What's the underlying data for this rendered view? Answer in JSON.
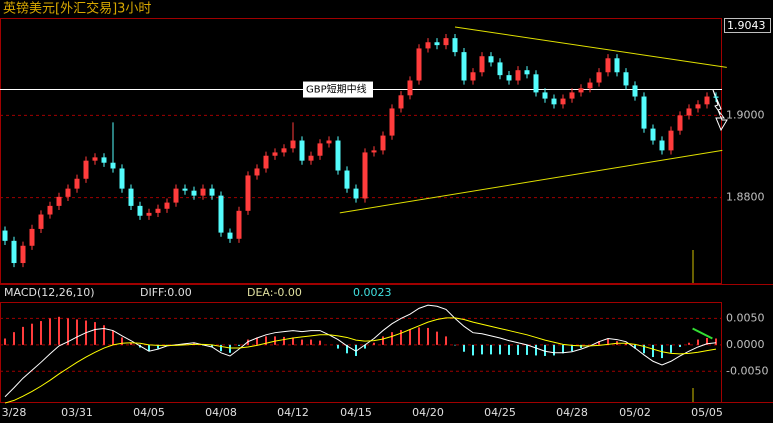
{
  "chart_data": [
    {
      "type": "candlestick",
      "title": "英镑美元[外汇交易]3小时",
      "categories": [
        null,
        "3/28",
        null,
        null,
        null,
        null,
        null,
        null,
        "03/31",
        null,
        null,
        null,
        null,
        null,
        null,
        null,
        "04/05",
        null,
        null,
        null,
        null,
        null,
        null,
        null,
        "04/08",
        null,
        null,
        null,
        null,
        null,
        null,
        null,
        "04/12",
        null,
        null,
        null,
        null,
        null,
        null,
        "04/15",
        null,
        null,
        null,
        null,
        null,
        null,
        null,
        "04/20",
        null,
        null,
        null,
        null,
        null,
        null,
        null,
        "04/25",
        null,
        null,
        null,
        null,
        null,
        null,
        null,
        "04/28",
        null,
        null,
        null,
        null,
        null,
        null,
        "05/02",
        null,
        null,
        null,
        null,
        null,
        null,
        null,
        "05/05",
        null
      ],
      "open": [
        1.872,
        1.8695,
        1.8641,
        1.8683,
        1.8724,
        1.8759,
        1.878,
        1.8802,
        1.8822,
        1.8846,
        1.889,
        1.8898,
        1.8885,
        1.8871,
        1.8822,
        1.878,
        1.8756,
        1.8763,
        1.8773,
        1.8788,
        1.8822,
        1.8817,
        1.8805,
        1.8822,
        1.8805,
        1.8715,
        1.87,
        1.8768,
        1.8854,
        1.8871,
        1.8902,
        1.891,
        1.892,
        1.8939,
        1.889,
        1.8902,
        1.8932,
        1.8939,
        1.8866,
        1.8822,
        1.8798,
        1.891,
        1.8915,
        1.8951,
        1.9017,
        1.9049,
        1.9085,
        1.9163,
        1.9178,
        1.9171,
        1.9188,
        1.9154,
        1.9085,
        1.9105,
        1.9144,
        1.9129,
        1.9098,
        1.9085,
        1.911,
        1.91,
        1.9056,
        1.9041,
        1.9027,
        1.9041,
        1.9056,
        1.9066,
        1.908,
        1.9105,
        1.9139,
        1.9105,
        1.9073,
        1.9046,
        1.8968,
        1.8939,
        1.8915,
        1.8963,
        1.9,
        1.9017,
        1.9027,
        1.9046
      ],
      "high": [
        1.873,
        1.8705,
        1.8693,
        1.8734,
        1.8769,
        1.879,
        1.8812,
        1.8832,
        1.8856,
        1.89,
        1.8908,
        1.8908,
        1.8983,
        1.8881,
        1.8832,
        1.879,
        1.8773,
        1.8783,
        1.8798,
        1.8832,
        1.8832,
        1.8827,
        1.8832,
        1.8832,
        1.8815,
        1.8725,
        1.8778,
        1.8864,
        1.8881,
        1.8912,
        1.892,
        1.893,
        1.8983,
        1.8949,
        1.8912,
        1.8942,
        1.8949,
        1.8949,
        1.8876,
        1.8832,
        1.892,
        1.8925,
        1.8961,
        1.9027,
        1.9059,
        1.9095,
        1.9173,
        1.9188,
        1.9188,
        1.9198,
        1.9198,
        1.9164,
        1.9115,
        1.9154,
        1.9154,
        1.9139,
        1.9108,
        1.912,
        1.912,
        1.911,
        1.9066,
        1.9051,
        1.9051,
        1.9066,
        1.9076,
        1.909,
        1.9115,
        1.9149,
        1.9149,
        1.9115,
        1.9083,
        1.9056,
        1.8978,
        1.8949,
        1.8973,
        1.901,
        1.9027,
        1.9037,
        1.9056,
        1.9056
      ],
      "low": [
        1.8685,
        1.8631,
        1.8631,
        1.8673,
        1.8714,
        1.8749,
        1.877,
        1.8792,
        1.8812,
        1.8836,
        1.888,
        1.8875,
        1.8861,
        1.8812,
        1.877,
        1.8746,
        1.8746,
        1.8753,
        1.8763,
        1.8778,
        1.8807,
        1.8795,
        1.8795,
        1.8795,
        1.8705,
        1.869,
        1.869,
        1.8758,
        1.8844,
        1.8861,
        1.8892,
        1.89,
        1.891,
        1.888,
        1.888,
        1.8892,
        1.8922,
        1.8856,
        1.8812,
        1.8788,
        1.8788,
        1.89,
        1.8905,
        1.8941,
        1.9007,
        1.9039,
        1.9075,
        1.9153,
        1.9161,
        1.9161,
        1.9144,
        1.9075,
        1.9075,
        1.9095,
        1.9119,
        1.9088,
        1.9075,
        1.9075,
        1.909,
        1.9046,
        1.9031,
        1.9017,
        1.9017,
        1.9031,
        1.9046,
        1.9056,
        1.907,
        1.9095,
        1.9095,
        1.9063,
        1.9036,
        1.8958,
        1.8929,
        1.8905,
        1.8905,
        1.8953,
        1.899,
        1.9007,
        1.9017,
        1.9033
      ],
      "close": [
        1.8695,
        1.8641,
        1.8683,
        1.8724,
        1.8759,
        1.878,
        1.8802,
        1.8822,
        1.8846,
        1.889,
        1.8898,
        1.8885,
        1.8871,
        1.8822,
        1.878,
        1.8756,
        1.8763,
        1.8773,
        1.8788,
        1.8822,
        1.8817,
        1.8805,
        1.8822,
        1.8805,
        1.8715,
        1.87,
        1.8768,
        1.8854,
        1.8871,
        1.8902,
        1.891,
        1.892,
        1.8939,
        1.889,
        1.8902,
        1.8932,
        1.8939,
        1.8866,
        1.8822,
        1.8798,
        1.891,
        1.8915,
        1.8951,
        1.9017,
        1.9049,
        1.9085,
        1.9163,
        1.9178,
        1.9171,
        1.9188,
        1.9154,
        1.9085,
        1.9105,
        1.9144,
        1.9129,
        1.9098,
        1.9085,
        1.911,
        1.91,
        1.9056,
        1.9041,
        1.9027,
        1.9041,
        1.9056,
        1.9066,
        1.908,
        1.9105,
        1.9139,
        1.9105,
        1.9073,
        1.9046,
        1.8968,
        1.8939,
        1.8915,
        1.8963,
        1.9,
        1.9017,
        1.9027,
        1.9046,
        1.9043
      ],
      "up_color": "#ff3c3c",
      "down_color": "#54fcfc",
      "ylim": [
        1.859,
        1.9237
      ],
      "yticks": [
        {
          "value": 1.88,
          "label": "1.8800"
        },
        {
          "value": 1.9,
          "label": "1.9000"
        }
      ],
      "grid": true,
      "reference_line": {
        "value": 1.9063,
        "label": "GBP短期中线",
        "color": "#ffffff"
      },
      "trendlines": [
        {
          "color": "#e0e000",
          "points": [
            [
              50,
              1.9215
            ],
            [
              80.2,
              1.9117
            ]
          ]
        },
        {
          "color": "#e0e000",
          "points": [
            [
              37.2,
              1.8763
            ],
            [
              79.7,
              1.8915
            ]
          ]
        }
      ]
    },
    {
      "type": "macd",
      "label": "MACD(12,26,10)",
      "diff_label": "DIFF:0.00",
      "dea_label": "DEA:-0.00",
      "macd_value": 0.0023,
      "diff": [
        -0.0098,
        -0.0081,
        -0.0063,
        -0.0048,
        -0.0033,
        -0.0017,
        -0.0002,
        0.0006,
        0.0015,
        0.0023,
        0.0029,
        0.0031,
        0.0027,
        0.0017,
        0.0008,
        -0.0002,
        -0.0012,
        -0.0008,
        -0.0002,
        0.0,
        0.0002,
        0.0004,
        0.0,
        -0.0004,
        -0.0015,
        -0.0021,
        -0.0008,
        0.0006,
        0.0013,
        0.0019,
        0.0023,
        0.0025,
        0.0027,
        0.0025,
        0.0027,
        0.0027,
        0.0019,
        0.001,
        -0.0002,
        -0.0012,
        0.0,
        0.0012,
        0.0027,
        0.004,
        0.005,
        0.0058,
        0.0069,
        0.0075,
        0.0073,
        0.0067,
        0.005,
        0.0035,
        0.0023,
        0.0021,
        0.0017,
        0.0013,
        0.0008,
        0.0004,
        0.0,
        -0.0006,
        -0.0012,
        -0.0015,
        -0.0015,
        -0.0013,
        -0.0008,
        -0.0002,
        0.0006,
        0.0012,
        0.001,
        0.0006,
        -0.0006,
        -0.0019,
        -0.0031,
        -0.0038,
        -0.0031,
        -0.0021,
        -0.0012,
        -0.0004,
        0.0002,
        0.0004
      ],
      "dea": [
        -0.011,
        -0.0105,
        -0.0097,
        -0.0088,
        -0.0078,
        -0.0067,
        -0.0055,
        -0.0044,
        -0.0033,
        -0.0023,
        -0.0014,
        -0.0006,
        0.0,
        0.0003,
        0.0004,
        0.0003,
        0.0,
        -0.0001,
        -0.0001,
        -0.0001,
        0.0,
        0.0001,
        0.0001,
        0.0,
        -0.0003,
        -0.0006,
        -0.0006,
        -0.0004,
        -0.0001,
        0.0003,
        0.0007,
        0.001,
        0.0013,
        0.0015,
        0.0017,
        0.0019,
        0.0019,
        0.0017,
        0.0014,
        0.0009,
        0.0007,
        0.0008,
        0.0011,
        0.0016,
        0.0022,
        0.0029,
        0.0036,
        0.0043,
        0.0048,
        0.0051,
        0.0051,
        0.0048,
        0.0043,
        0.0039,
        0.0035,
        0.0031,
        0.0027,
        0.0023,
        0.0019,
        0.0014,
        0.0009,
        0.0005,
        0.0001,
        -0.0001,
        -0.0002,
        -0.0002,
        -0.0001,
        0.0001,
        0.0003,
        0.0003,
        0.0001,
        -0.0003,
        -0.0008,
        -0.0013,
        -0.0016,
        -0.0017,
        -0.0016,
        -0.0014,
        -0.0011,
        -0.0008
      ],
      "hist": [
        0.0012,
        0.0024,
        0.0034,
        0.004,
        0.0045,
        0.005,
        0.0053,
        0.005,
        0.0048,
        0.0046,
        0.0043,
        0.0037,
        0.0027,
        0.0014,
        0.0004,
        -0.0005,
        -0.0012,
        -0.0007,
        -0.0001,
        0.0001,
        0.0002,
        0.0003,
        -0.0001,
        -0.0004,
        -0.0012,
        -0.0015,
        -0.0002,
        0.001,
        0.0014,
        0.0016,
        0.0016,
        0.0015,
        0.0014,
        0.001,
        0.001,
        0.0008,
        0.0,
        -0.0007,
        -0.0016,
        -0.0021,
        -0.0007,
        0.0004,
        0.0016,
        0.0024,
        0.0028,
        0.0029,
        0.0033,
        0.0032,
        0.0025,
        0.0016,
        -0.0001,
        -0.0013,
        -0.002,
        -0.0018,
        -0.0018,
        -0.0018,
        -0.0019,
        -0.0019,
        -0.0019,
        -0.002,
        -0.0021,
        -0.002,
        -0.0016,
        -0.0012,
        -0.0006,
        0.0,
        0.0007,
        0.0011,
        0.0007,
        0.0003,
        -0.0007,
        -0.0016,
        -0.0023,
        -0.0025,
        -0.0015,
        -0.0004,
        0.0004,
        0.001,
        0.0013,
        0.0012
      ],
      "diff_color": "#ffffff",
      "dea_color": "#ffff00",
      "hist_colors": [
        "#ff3c3c",
        "#54fcfc"
      ],
      "ylim": [
        -0.0108,
        0.0081
      ],
      "yticks": [
        {
          "value": 0.005,
          "label": "0.0050"
        },
        {
          "value": 0,
          "label": "0.0000"
        },
        {
          "value": -0.005,
          "label": "-0.0050"
        }
      ],
      "grid": true,
      "trendline": {
        "color": "#33dd33",
        "points": [
          [
            76.4,
            0.0031
          ],
          [
            78.6,
            0.0012
          ]
        ]
      }
    }
  ]
}
